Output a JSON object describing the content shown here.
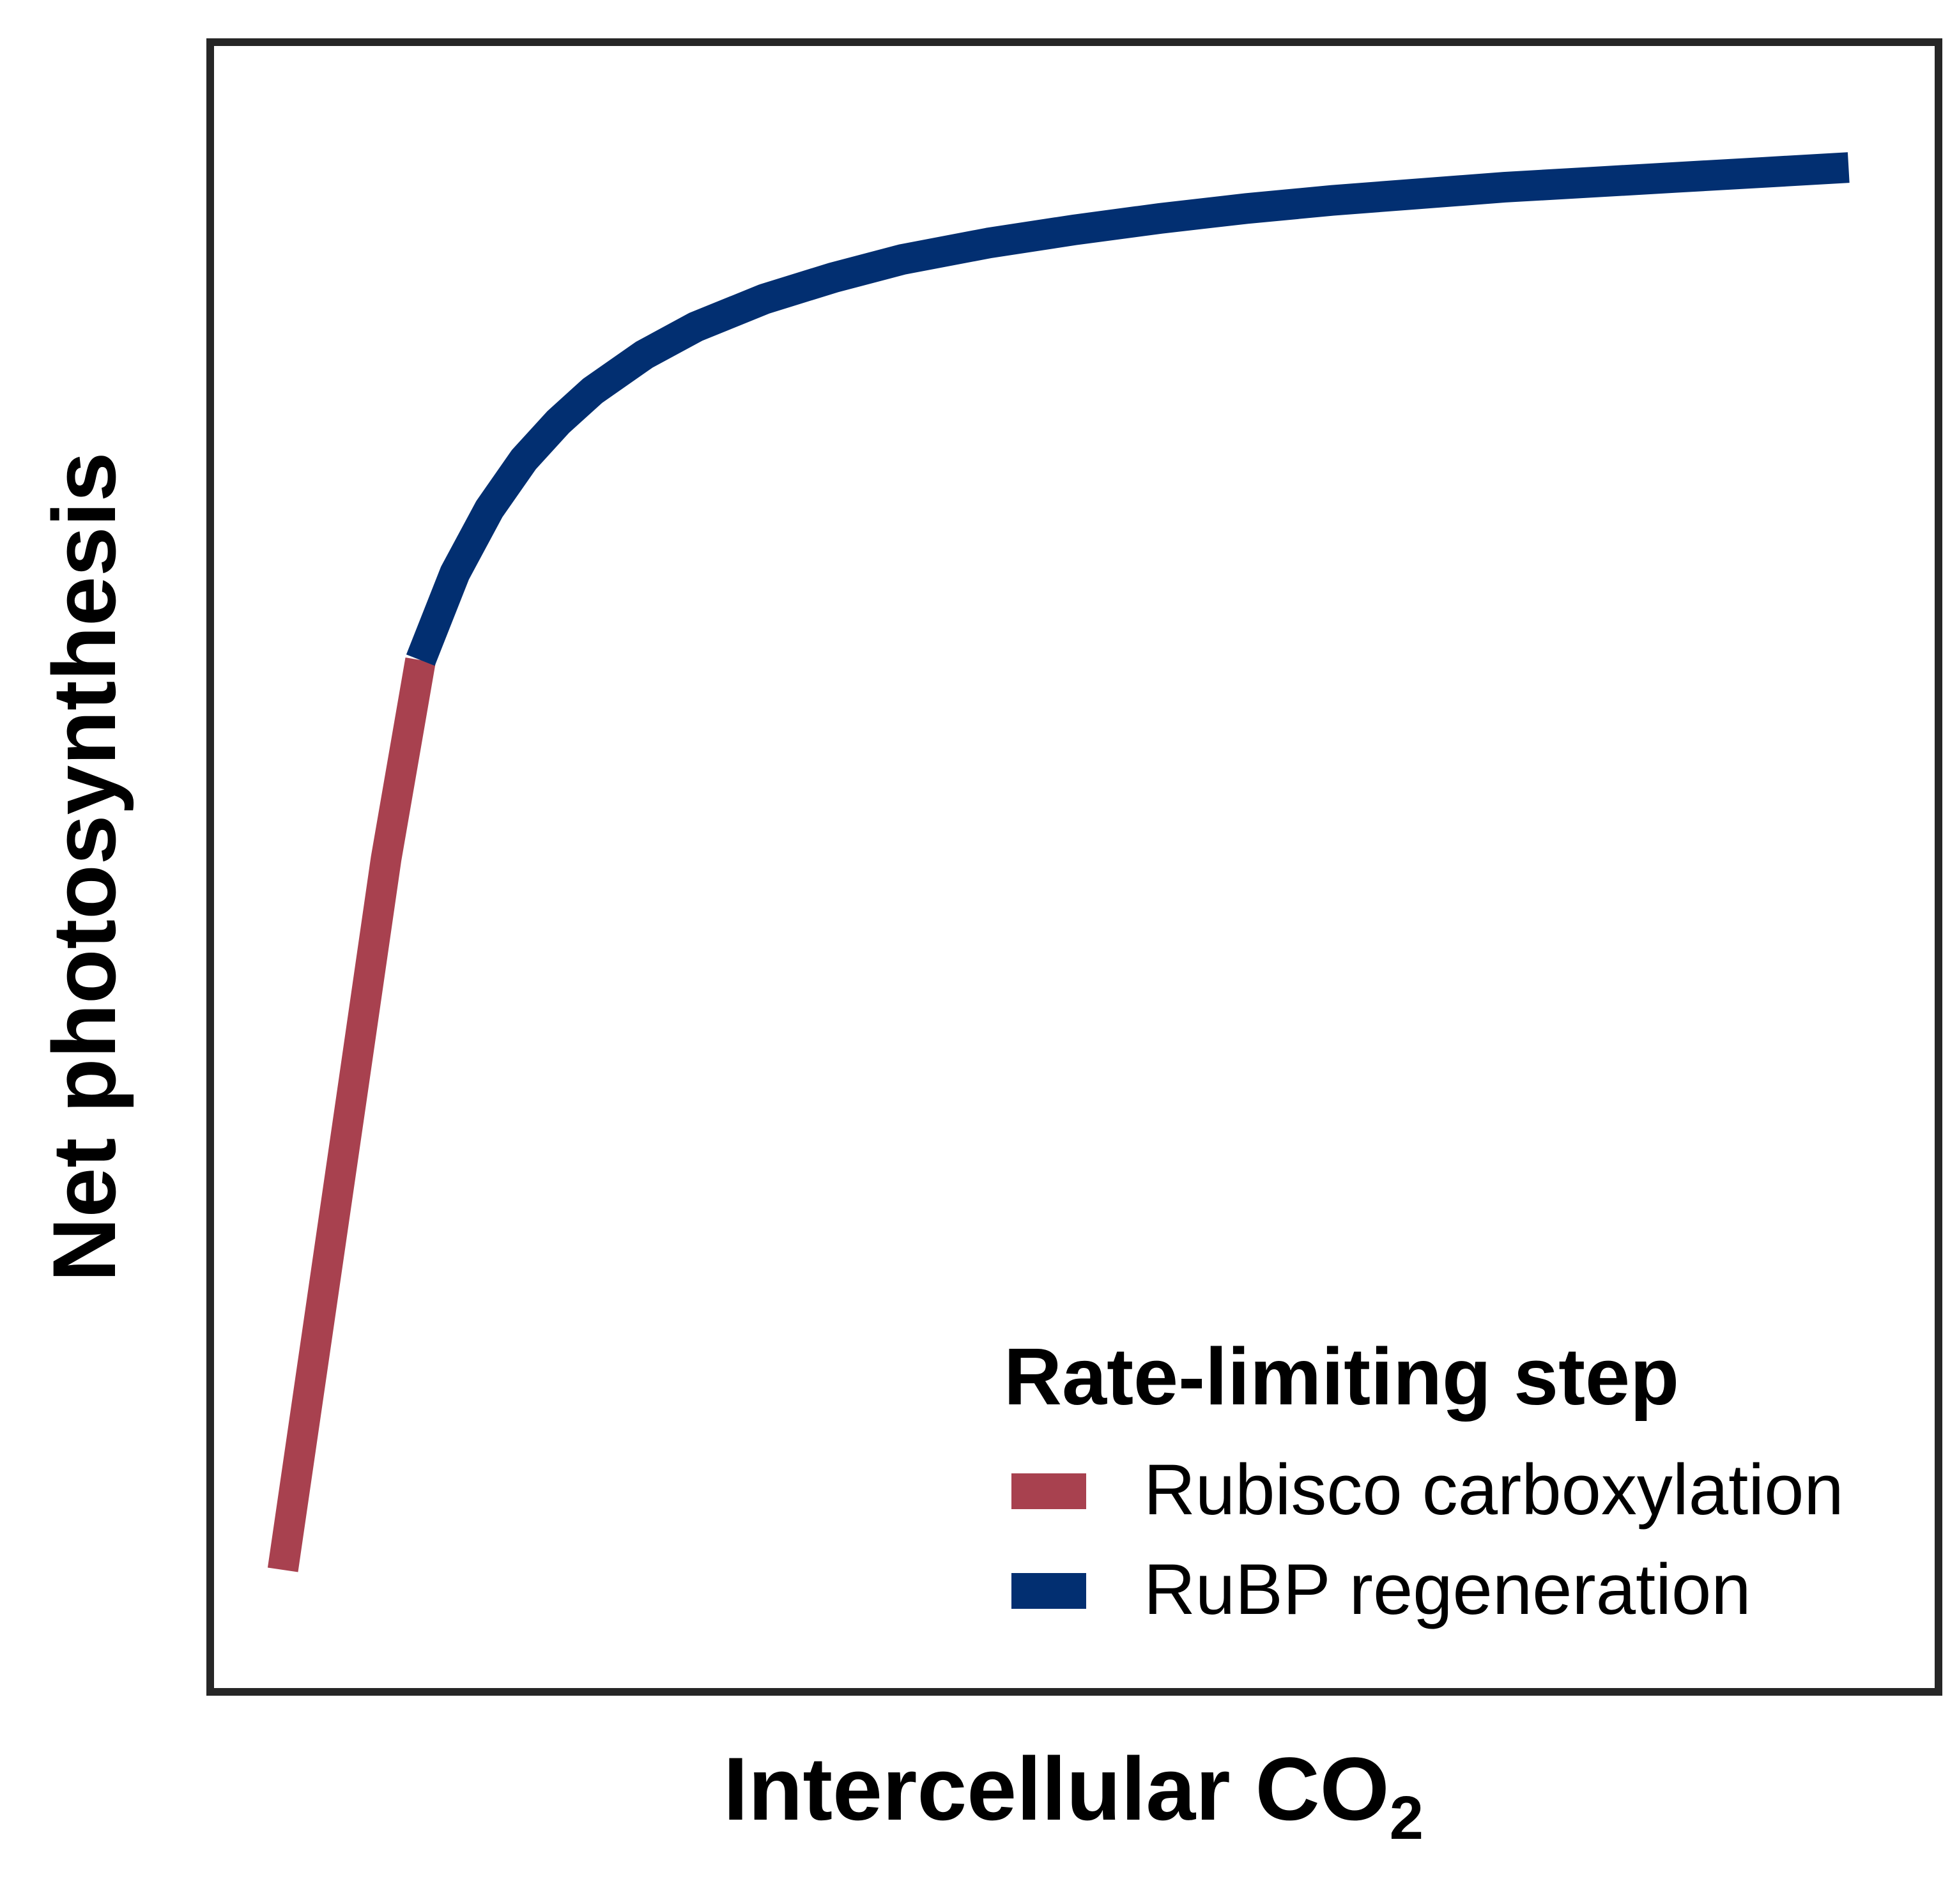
{
  "chart_data": {
    "type": "line",
    "title": "",
    "xlabel": "Intercellular CO",
    "xlabel_subscript": "2",
    "ylabel": "Net photosynthesis",
    "xlim": [
      0,
      1
    ],
    "ylim": [
      0,
      1
    ],
    "grid": false,
    "ticks": false,
    "legend": {
      "title": "Rate-limiting step",
      "placement": "bottom-right"
    },
    "series": [
      {
        "name": "Rubisco carboxylation",
        "color": "#a8414f",
        "x": [
          0.04,
          0.06,
          0.08,
          0.1,
          0.12
        ],
        "y": [
          0.072,
          0.216,
          0.36,
          0.505,
          0.626
        ]
      },
      {
        "name": "RuBP regeneration",
        "color": "#022f71",
        "x": [
          0.12,
          0.14,
          0.16,
          0.18,
          0.2,
          0.22,
          0.25,
          0.28,
          0.32,
          0.36,
          0.4,
          0.45,
          0.5,
          0.55,
          0.6,
          0.65,
          0.7,
          0.75,
          0.8,
          0.85,
          0.9,
          0.95
        ],
        "y": [
          0.626,
          0.679,
          0.718,
          0.748,
          0.771,
          0.79,
          0.812,
          0.829,
          0.846,
          0.859,
          0.87,
          0.88,
          0.888,
          0.895,
          0.901,
          0.906,
          0.91,
          0.914,
          0.917,
          0.92,
          0.923,
          0.926
        ]
      }
    ]
  }
}
